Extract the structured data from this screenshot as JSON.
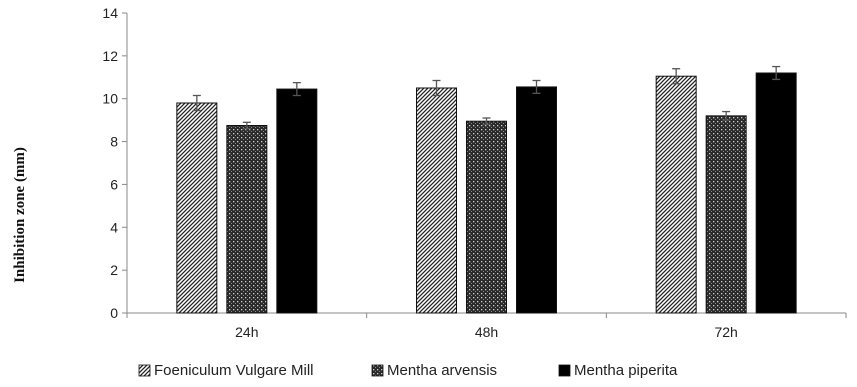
{
  "chart_data": {
    "type": "bar",
    "title": "",
    "xlabel": "",
    "ylabel": "Inhibition zone (mm)",
    "categories": [
      "24h",
      "48h",
      "72h"
    ],
    "ylim": [
      0,
      14
    ],
    "yticks": [
      0,
      2,
      4,
      6,
      8,
      10,
      12,
      14
    ],
    "grid": false,
    "legend_position": "bottom",
    "error_bars": true,
    "series": [
      {
        "name": "Foeniculum Vulgare Mill",
        "pattern": "diagonal-stripes",
        "values": [
          9.8,
          10.5,
          11.05
        ],
        "errors": [
          0.35,
          0.35,
          0.35
        ]
      },
      {
        "name": "Mentha arvensis",
        "pattern": "crosshatch",
        "values": [
          8.75,
          8.95,
          9.2
        ],
        "errors": [
          0.15,
          0.15,
          0.2
        ]
      },
      {
        "name": "Mentha piperita",
        "pattern": "solid-black",
        "values": [
          10.45,
          10.55,
          11.2
        ],
        "errors": [
          0.3,
          0.3,
          0.3
        ]
      }
    ]
  }
}
